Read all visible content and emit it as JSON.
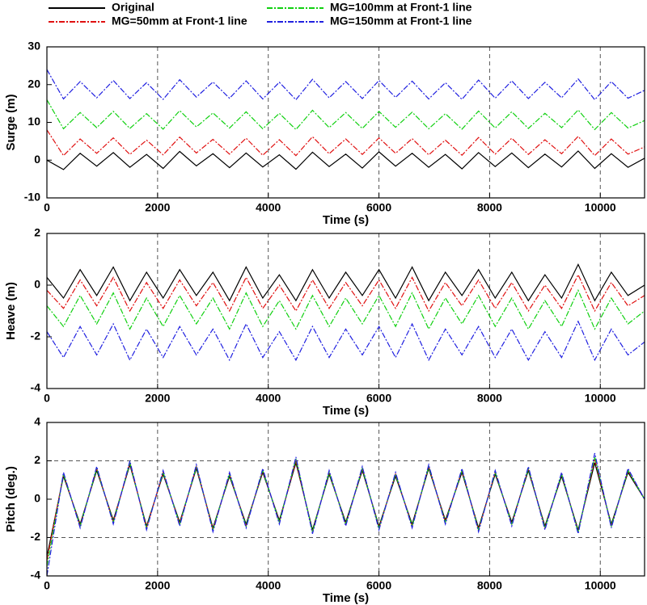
{
  "chart_data": [
    {
      "type": "line",
      "xlabel": "Time (s)",
      "ylabel": "Surge (m)",
      "x": [
        0,
        300,
        600,
        900,
        1200,
        1500,
        1800,
        2100,
        2400,
        2700,
        3000,
        3300,
        3600,
        3900,
        4200,
        4500,
        4800,
        5100,
        5400,
        5700,
        6000,
        6300,
        6600,
        6900,
        7200,
        7500,
        7800,
        8100,
        8400,
        8700,
        9000,
        9300,
        9600,
        9900,
        10200,
        10500,
        10800
      ],
      "xlim": [
        0,
        10800
      ],
      "xticks": [
        0,
        2000,
        4000,
        6000,
        8000,
        10000
      ],
      "ylim": [
        -10,
        30
      ],
      "yticks": [
        -10,
        0,
        10,
        20,
        30
      ],
      "grid": "x",
      "series": [
        {
          "name": "Original",
          "color": "#000000",
          "style": "solid",
          "values": [
            0,
            -2.5,
            1.8,
            -1.6,
            2.0,
            -1.9,
            1.5,
            -2.2,
            2.3,
            -1.5,
            1.7,
            -2.0,
            1.9,
            -1.8,
            1.4,
            -2.4,
            2.1,
            -1.7,
            1.6,
            -2.1,
            2.2,
            -1.6,
            1.8,
            -1.9,
            1.5,
            -2.3,
            2.0,
            -1.7,
            1.9,
            -2.0,
            1.6,
            -1.8,
            2.4,
            -2.2,
            1.7,
            -1.9,
            0.5
          ]
        },
        {
          "name": "MG=50mm at Front-1 line",
          "color": "#e01010",
          "style": "dash-dot",
          "values": [
            8,
            1.2,
            5.6,
            1.8,
            5.9,
            1.5,
            5.3,
            1.4,
            6.1,
            1.9,
            5.5,
            1.6,
            5.8,
            1.3,
            5.4,
            1.2,
            6.2,
            1.7,
            5.6,
            1.5,
            5.9,
            1.8,
            5.7,
            1.4,
            5.3,
            1.3,
            6.0,
            1.6,
            5.8,
            1.5,
            5.4,
            1.7,
            6.3,
            1.2,
            5.6,
            1.6,
            3.5
          ]
        },
        {
          "name": "MG=100mm at Front-1 line",
          "color": "#10d010",
          "style": "dash-dot",
          "values": [
            16,
            8.3,
            12.6,
            8.6,
            12.9,
            8.4,
            12.3,
            8.2,
            13.1,
            8.8,
            12.5,
            8.5,
            12.8,
            8.3,
            12.4,
            8.1,
            13.2,
            8.6,
            12.6,
            8.4,
            12.9,
            8.7,
            12.7,
            8.3,
            12.3,
            8.2,
            13.0,
            8.5,
            12.8,
            8.4,
            12.4,
            8.6,
            13.3,
            8.1,
            12.6,
            8.5,
            10.5
          ]
        },
        {
          "name": "MG=150mm at Front-1 line",
          "color": "#2020e0",
          "style": "dash-dot",
          "values": [
            24,
            16.2,
            20.8,
            16.5,
            21.1,
            16.3,
            20.5,
            16.1,
            21.3,
            16.7,
            20.7,
            16.4,
            21.0,
            16.2,
            20.6,
            16.0,
            21.4,
            16.5,
            20.8,
            16.3,
            21.1,
            16.6,
            20.9,
            16.2,
            20.5,
            16.1,
            21.2,
            16.4,
            21.0,
            16.3,
            20.6,
            16.5,
            21.5,
            16.0,
            20.8,
            16.4,
            18.5
          ]
        }
      ]
    },
    {
      "type": "line",
      "xlabel": "Time (s)",
      "ylabel": "Heave (m)",
      "x": [
        0,
        300,
        600,
        900,
        1200,
        1500,
        1800,
        2100,
        2400,
        2700,
        3000,
        3300,
        3600,
        3900,
        4200,
        4500,
        4800,
        5100,
        5400,
        5700,
        6000,
        6300,
        6600,
        6900,
        7200,
        7500,
        7800,
        8100,
        8400,
        8700,
        9000,
        9300,
        9600,
        9900,
        10200,
        10500,
        10800
      ],
      "xlim": [
        0,
        10800
      ],
      "xticks": [
        0,
        2000,
        4000,
        6000,
        8000,
        10000
      ],
      "ylim": [
        -4,
        2
      ],
      "yticks": [
        -4,
        -2,
        0,
        2
      ],
      "grid": "x",
      "series": [
        {
          "color": "#000000",
          "style": "solid",
          "values": [
            0.3,
            -0.5,
            0.6,
            -0.4,
            0.7,
            -0.6,
            0.5,
            -0.5,
            0.6,
            -0.4,
            0.5,
            -0.6,
            0.7,
            -0.5,
            0.4,
            -0.6,
            0.6,
            -0.5,
            0.5,
            -0.4,
            0.6,
            -0.5,
            0.7,
            -0.6,
            0.5,
            -0.4,
            0.6,
            -0.5,
            0.5,
            -0.6,
            0.4,
            -0.5,
            0.8,
            -0.6,
            0.5,
            -0.4,
            0
          ]
        },
        {
          "color": "#e01010",
          "style": "dash-dot",
          "values": [
            -0.2,
            -0.9,
            0.2,
            -0.8,
            0.3,
            -1.0,
            0.1,
            -0.9,
            0.2,
            -0.8,
            0.1,
            -1.0,
            0.3,
            -0.9,
            0.0,
            -1.0,
            0.2,
            -0.9,
            0.1,
            -0.8,
            0.2,
            -0.9,
            0.3,
            -1.0,
            0.1,
            -0.8,
            0.2,
            -0.9,
            0.1,
            -1.0,
            0.0,
            -0.9,
            0.4,
            -1.0,
            0.1,
            -0.8,
            -0.4
          ]
        },
        {
          "color": "#10d010",
          "style": "dash-dot",
          "values": [
            -0.8,
            -1.6,
            -0.4,
            -1.5,
            -0.3,
            -1.7,
            -0.5,
            -1.6,
            -0.4,
            -1.5,
            -0.5,
            -1.7,
            -0.3,
            -1.6,
            -0.6,
            -1.7,
            -0.4,
            -1.6,
            -0.5,
            -1.5,
            -0.4,
            -1.6,
            -0.3,
            -1.7,
            -0.5,
            -1.5,
            -0.4,
            -1.6,
            -0.5,
            -1.7,
            -0.6,
            -1.6,
            -0.2,
            -1.7,
            -0.5,
            -1.5,
            -1.0
          ]
        },
        {
          "color": "#2020e0",
          "style": "dash-dot",
          "values": [
            -1.8,
            -2.8,
            -1.6,
            -2.7,
            -1.5,
            -2.9,
            -1.7,
            -2.8,
            -1.6,
            -2.7,
            -1.7,
            -2.9,
            -1.5,
            -2.8,
            -1.8,
            -2.9,
            -1.6,
            -2.8,
            -1.7,
            -2.7,
            -1.6,
            -2.8,
            -1.5,
            -2.9,
            -1.7,
            -2.7,
            -1.6,
            -2.8,
            -1.7,
            -2.9,
            -1.8,
            -2.8,
            -1.4,
            -2.9,
            -1.7,
            -2.7,
            -2.2
          ]
        }
      ]
    },
    {
      "type": "line",
      "xlabel": "Time (s)",
      "ylabel": "Pitch (deg.)",
      "x": [
        0,
        300,
        600,
        900,
        1200,
        1500,
        1800,
        2100,
        2400,
        2700,
        3000,
        3300,
        3600,
        3900,
        4200,
        4500,
        4800,
        5100,
        5400,
        5700,
        6000,
        6300,
        6600,
        6900,
        7200,
        7500,
        7800,
        8100,
        8400,
        8700,
        9000,
        9300,
        9600,
        9900,
        10200,
        10500,
        10800
      ],
      "xlim": [
        0,
        10800
      ],
      "xticks": [
        0,
        2000,
        4000,
        6000,
        8000,
        10000
      ],
      "ylim": [
        -4,
        4
      ],
      "yticks": [
        -4,
        -2,
        0,
        2,
        4
      ],
      "grid": "x",
      "reference_lines": [
        -2,
        2
      ],
      "series": [
        {
          "color": "#000000",
          "style": "solid",
          "values": [
            -3,
            1.2,
            -1.3,
            1.5,
            -1.1,
            1.8,
            -1.4,
            1.3,
            -1.2,
            1.6,
            -1.5,
            1.2,
            -1.3,
            1.4,
            -1.1,
            1.9,
            -1.6,
            1.3,
            -1.2,
            1.5,
            -1.4,
            1.2,
            -1.3,
            1.6,
            -1.1,
            1.4,
            -1.5,
            1.3,
            -1.2,
            1.5,
            -1.4,
            1.2,
            -1.6,
            1.9,
            -1.3,
            1.4,
            0
          ]
        },
        {
          "color": "#e01010",
          "style": "dash-dot",
          "values": [
            -3.2,
            1.3,
            -1.4,
            1.6,
            -1.2,
            1.9,
            -1.5,
            1.4,
            -1.3,
            1.7,
            -1.6,
            1.3,
            -1.4,
            1.5,
            -1.2,
            2.0,
            -1.7,
            1.4,
            -1.3,
            1.6,
            -1.5,
            1.3,
            -1.4,
            1.7,
            -1.2,
            1.5,
            -1.6,
            1.4,
            -1.3,
            1.6,
            -1.5,
            1.3,
            -1.7,
            2.1,
            -1.4,
            1.5,
            0
          ]
        },
        {
          "color": "#10d010",
          "style": "dash-dot",
          "values": [
            -3.5,
            1.3,
            -1.4,
            1.6,
            -1.2,
            1.9,
            -1.5,
            1.4,
            -1.3,
            1.7,
            -1.6,
            1.3,
            -1.4,
            1.5,
            -1.2,
            2.1,
            -1.7,
            1.4,
            -1.3,
            1.6,
            -1.5,
            1.3,
            -1.4,
            1.7,
            -1.2,
            1.5,
            -1.6,
            1.4,
            -1.3,
            1.6,
            -1.5,
            1.3,
            -1.7,
            2.2,
            -1.4,
            1.5,
            0
          ]
        },
        {
          "color": "#2020e0",
          "style": "dash-dot",
          "values": [
            -4,
            1.4,
            -1.5,
            1.7,
            -1.3,
            2.0,
            -1.6,
            1.5,
            -1.4,
            1.8,
            -1.7,
            1.4,
            -1.5,
            1.6,
            -1.3,
            2.2,
            -1.8,
            1.5,
            -1.4,
            1.7,
            -1.6,
            1.4,
            -1.5,
            1.8,
            -1.3,
            1.6,
            -1.7,
            1.5,
            -1.4,
            1.7,
            -1.6,
            1.4,
            -1.8,
            2.4,
            -1.5,
            1.6,
            0
          ]
        }
      ]
    }
  ]
}
